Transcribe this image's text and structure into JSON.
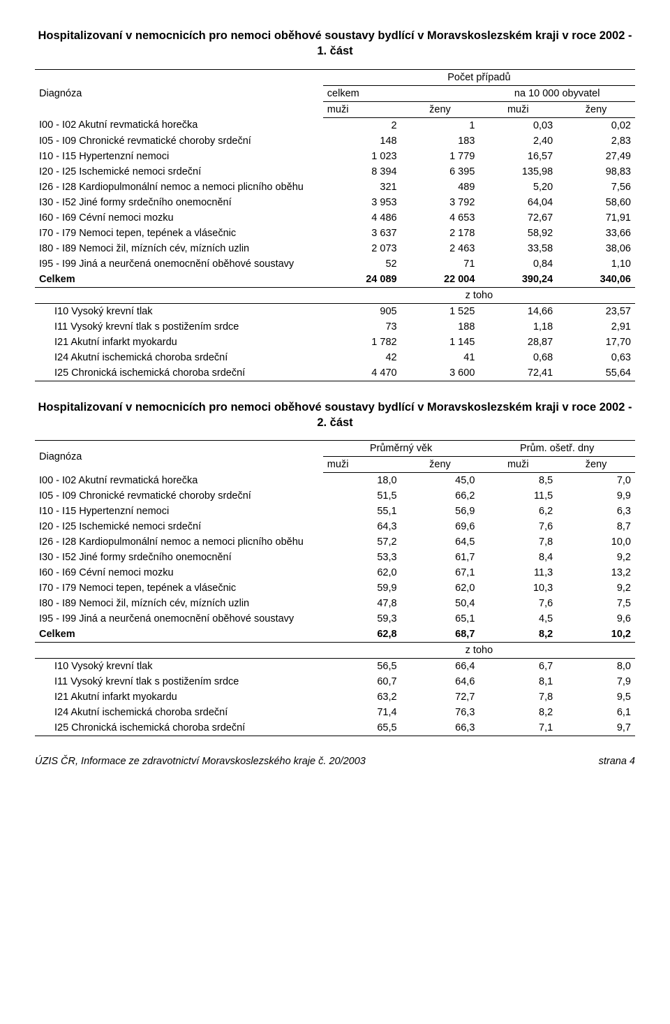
{
  "table1": {
    "title": "Hospitalizovaní v nemocnicích pro nemoci oběhové soustavy bydlící v Moravskoslezském kraji v roce 2002 - 1. část",
    "header": {
      "diag": "Diagnóza",
      "group": "Počet případů",
      "sub1": "celkem",
      "sub2": "na 10 000 obyvatel",
      "muzi": "muži",
      "zeny": "ženy"
    },
    "rows": [
      {
        "label": "I00 - I02  Akutní revmatická horečka",
        "c": [
          "2",
          "1",
          "0,03",
          "0,02"
        ]
      },
      {
        "label": "I05 - I09  Chronické revmatické choroby srdeční",
        "c": [
          "148",
          "183",
          "2,40",
          "2,83"
        ]
      },
      {
        "label": "I10 - I15  Hypertenzní nemoci",
        "c": [
          "1 023",
          "1 779",
          "16,57",
          "27,49"
        ]
      },
      {
        "label": "I20 - I25  Ischemické nemoci srdeční",
        "c": [
          "8 394",
          "6 395",
          "135,98",
          "98,83"
        ]
      },
      {
        "label": "I26 - I28  Kardiopulmonální nemoc a nemoci plicního oběhu",
        "c": [
          "321",
          "489",
          "5,20",
          "7,56"
        ]
      },
      {
        "label": "I30 - I52  Jiné formy srdečního onemocnění",
        "c": [
          "3 953",
          "3 792",
          "64,04",
          "58,60"
        ]
      },
      {
        "label": "I60 - I69  Cévní nemoci mozku",
        "c": [
          "4 486",
          "4 653",
          "72,67",
          "71,91"
        ]
      },
      {
        "label": "I70 - I79  Nemoci tepen, tepének a vlásečnic",
        "c": [
          "3 637",
          "2 178",
          "58,92",
          "33,66"
        ]
      },
      {
        "label": "I80 - I89  Nemoci žil, mízních cév, mízních uzlin",
        "c": [
          "2 073",
          "2 463",
          "33,58",
          "38,06"
        ]
      },
      {
        "label": "I95 - I99  Jiná a neurčená onemocnění oběhové soustavy",
        "c": [
          "52",
          "71",
          "0,84",
          "1,10"
        ]
      }
    ],
    "total": {
      "label": "Celkem",
      "c": [
        "24 089",
        "22 004",
        "390,24",
        "340,06"
      ]
    },
    "ztoho": "z toho",
    "subrows": [
      {
        "label": "I10  Vysoký krevní tlak",
        "c": [
          "905",
          "1 525",
          "14,66",
          "23,57"
        ]
      },
      {
        "label": "I11  Vysoký krevní tlak s postižením srdce",
        "c": [
          "73",
          "188",
          "1,18",
          "2,91"
        ]
      },
      {
        "label": "I21  Akutní infarkt myokardu",
        "c": [
          "1 782",
          "1 145",
          "28,87",
          "17,70"
        ]
      },
      {
        "label": "I24  Akutní ischemická choroba srdeční",
        "c": [
          "42",
          "41",
          "0,68",
          "0,63"
        ]
      },
      {
        "label": "I25  Chronická ischemická choroba srdeční",
        "c": [
          "4 470",
          "3 600",
          "72,41",
          "55,64"
        ]
      }
    ]
  },
  "table2": {
    "title": "Hospitalizovaní v nemocnicích pro nemoci oběhové soustavy bydlící v Moravskoslezském kraji v roce 2002 - 2. část",
    "header": {
      "diag": "Diagnóza",
      "sub1": "Průměrný věk",
      "sub2": "Prům. ošetř. dny",
      "muzi": "muži",
      "zeny": "ženy"
    },
    "rows": [
      {
        "label": "I00 - I02  Akutní revmatická horečka",
        "c": [
          "18,0",
          "45,0",
          "8,5",
          "7,0"
        ]
      },
      {
        "label": "I05 - I09  Chronické revmatické choroby srdeční",
        "c": [
          "51,5",
          "66,2",
          "11,5",
          "9,9"
        ]
      },
      {
        "label": "I10 - I15  Hypertenzní nemoci",
        "c": [
          "55,1",
          "56,9",
          "6,2",
          "6,3"
        ]
      },
      {
        "label": "I20 - I25  Ischemické nemoci srdeční",
        "c": [
          "64,3",
          "69,6",
          "7,6",
          "8,7"
        ]
      },
      {
        "label": "I26 - I28  Kardiopulmonální nemoc a nemoci plicního oběhu",
        "c": [
          "57,2",
          "64,5",
          "7,8",
          "10,0"
        ]
      },
      {
        "label": "I30 - I52  Jiné formy srdečního onemocnění",
        "c": [
          "53,3",
          "61,7",
          "8,4",
          "9,2"
        ]
      },
      {
        "label": "I60 - I69  Cévní nemoci mozku",
        "c": [
          "62,0",
          "67,1",
          "11,3",
          "13,2"
        ]
      },
      {
        "label": "I70 - I79  Nemoci tepen, tepének a vlásečnic",
        "c": [
          "59,9",
          "62,0",
          "10,3",
          "9,2"
        ]
      },
      {
        "label": "I80 - I89  Nemoci žil, mízních cév, mízních uzlin",
        "c": [
          "47,8",
          "50,4",
          "7,6",
          "7,5"
        ]
      },
      {
        "label": "I95 - I99  Jiná a neurčená onemocnění oběhové soustavy",
        "c": [
          "59,3",
          "65,1",
          "4,5",
          "9,6"
        ]
      }
    ],
    "total": {
      "label": "Celkem",
      "c": [
        "62,8",
        "68,7",
        "8,2",
        "10,2"
      ]
    },
    "ztoho": "z toho",
    "subrows": [
      {
        "label": "I10  Vysoký krevní tlak",
        "c": [
          "56,5",
          "66,4",
          "6,7",
          "8,0"
        ]
      },
      {
        "label": "I11  Vysoký krevní tlak s postižením srdce",
        "c": [
          "60,7",
          "64,6",
          "8,1",
          "7,9"
        ]
      },
      {
        "label": "I21  Akutní infarkt myokardu",
        "c": [
          "63,2",
          "72,7",
          "7,8",
          "9,5"
        ]
      },
      {
        "label": "I24  Akutní ischemická choroba srdeční",
        "c": [
          "71,4",
          "76,3",
          "8,2",
          "6,1"
        ]
      },
      {
        "label": "I25  Chronická ischemická choroba srdeční",
        "c": [
          "65,5",
          "66,3",
          "7,1",
          "9,7"
        ]
      }
    ]
  },
  "footer": {
    "left": "ÚZIS ČR, Informace ze zdravotnictví Moravskoslezského kraje č. 20/2003",
    "right": "strana 4"
  },
  "layout": {
    "col_widths_pct": [
      48,
      13,
      13,
      13,
      13
    ]
  }
}
